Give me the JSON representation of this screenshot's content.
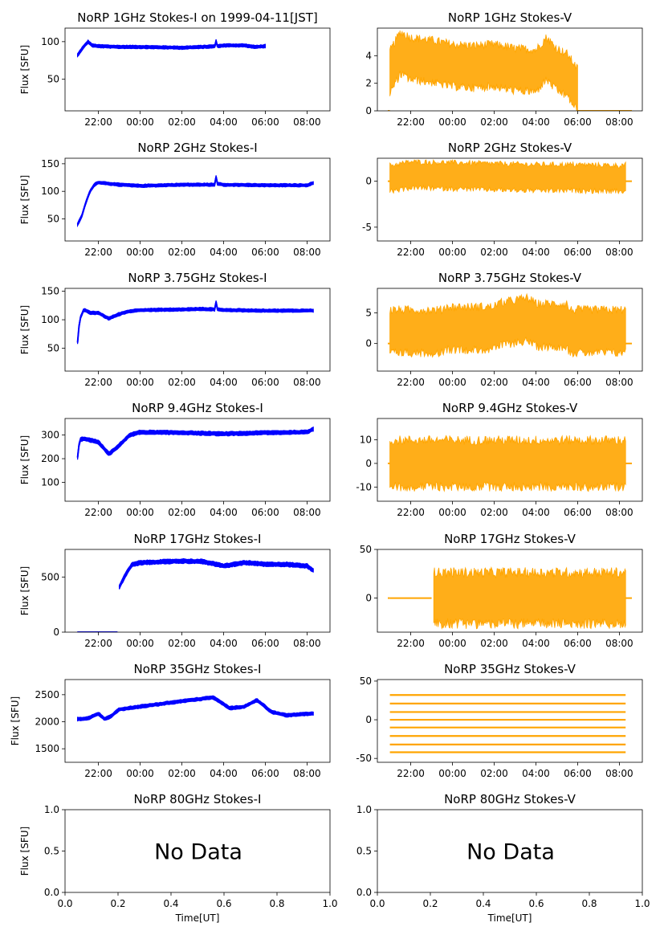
{
  "figure": {
    "title_prefix": "",
    "xlabel": "Time[UT]",
    "ylabel_I": "Flux [SFU]",
    "no_data_text": "No Data",
    "time_ticks": [
      "22:00",
      "00:00",
      "02:00",
      "04:00",
      "06:00",
      "08:00"
    ],
    "empty_ticks": [
      "0.0",
      "0.2",
      "0.4",
      "0.6",
      "0.8",
      "1.0"
    ],
    "empty_yticks": [
      "0.0",
      "0.5",
      "1.0"
    ]
  },
  "colors": {
    "stokes_I": "#0000ff",
    "stokes_V": "#ffa500"
  },
  "chart_data": [
    {
      "type": "line",
      "title": "NoRP 1GHz Stokes-I on 1999-04-11[JST]",
      "ylabel": "Flux [SFU]",
      "xlabel": "",
      "xlim_hours": [
        20.4,
        33.1
      ],
      "ylim": [
        8,
        118
      ],
      "yticks": [
        50,
        100
      ],
      "series": [
        {
          "kind": "I",
          "x_hours": [
            21.0,
            21.2,
            21.5,
            21.7,
            22.0,
            23.0,
            24.0,
            26.0,
            27.0,
            27.6,
            27.65,
            27.7,
            28.0,
            29.0,
            29.5,
            30.0
          ],
          "y": [
            82,
            90,
            100,
            95,
            94,
            93,
            93,
            92,
            93,
            94,
            103,
            94,
            95,
            95,
            93,
            94
          ],
          "band": 3
        }
      ]
    },
    {
      "type": "scatter",
      "title": "NoRP 1GHz Stokes-V",
      "ylabel": "",
      "xlabel": "",
      "xlim_hours": [
        20.4,
        33.1
      ],
      "ylim": [
        0,
        6
      ],
      "yticks": [
        0,
        2,
        4
      ],
      "series": [
        {
          "kind": "V",
          "x_hours": [
            21.0,
            21.5,
            22.0,
            23.0,
            24.0,
            25.0,
            26.0,
            27.0,
            28.0,
            28.5,
            29.0,
            29.5,
            30.0
          ],
          "y": [
            2.8,
            4.2,
            3.8,
            3.6,
            3.3,
            3.2,
            3.3,
            3.0,
            2.9,
            3.8,
            3.0,
            2.6,
            1.5
          ],
          "band": 1.4
        }
      ]
    },
    {
      "type": "line",
      "title": "NoRP 2GHz Stokes-I",
      "ylabel": "Flux [SFU]",
      "xlabel": "",
      "xlim_hours": [
        20.4,
        33.1
      ],
      "ylim": [
        10,
        160
      ],
      "yticks": [
        50,
        100,
        150
      ],
      "series": [
        {
          "kind": "I",
          "x_hours": [
            21.0,
            21.2,
            21.4,
            21.6,
            21.8,
            22.0,
            22.5,
            23.0,
            24.0,
            26.0,
            27.6,
            27.65,
            27.7,
            28.0,
            30.0,
            32.0,
            32.3
          ],
          "y": [
            40,
            55,
            80,
            100,
            112,
            116,
            114,
            112,
            110,
            112,
            112,
            130,
            114,
            112,
            111,
            111,
            115
          ],
          "band": 4
        }
      ]
    },
    {
      "type": "scatter",
      "title": "NoRP 2GHz Stokes-V",
      "ylabel": "",
      "xlabel": "",
      "xlim_hours": [
        20.4,
        33.1
      ],
      "ylim": [
        -6.5,
        2.5
      ],
      "yticks": [
        -5,
        0
      ],
      "series": [
        {
          "kind": "V",
          "x_hours": [
            21.0,
            22.0,
            24.0,
            26.0,
            28.0,
            30.0,
            32.0,
            32.3
          ],
          "y": [
            0.3,
            0.7,
            0.6,
            0.5,
            0.4,
            0.4,
            0.3,
            0.4
          ],
          "band": 1.3
        }
      ]
    },
    {
      "type": "line",
      "title": "NoRP 3.75GHz Stokes-I",
      "ylabel": "Flux [SFU]",
      "xlabel": "",
      "xlim_hours": [
        20.4,
        33.1
      ],
      "ylim": [
        10,
        155
      ],
      "yticks": [
        50,
        100,
        150
      ],
      "series": [
        {
          "kind": "I",
          "x_hours": [
            21.0,
            21.1,
            21.3,
            21.6,
            22.0,
            22.5,
            23.0,
            23.5,
            24.0,
            26.0,
            27.0,
            27.6,
            27.65,
            27.7,
            28.0,
            30.0,
            32.3
          ],
          "y": [
            60,
            100,
            118,
            112,
            112,
            102,
            110,
            115,
            117,
            118,
            119,
            118,
            135,
            118,
            117,
            116,
            116
          ],
          "band": 4
        }
      ]
    },
    {
      "type": "scatter",
      "title": "NoRP 3.75GHz Stokes-V",
      "ylabel": "",
      "xlabel": "",
      "xlim_hours": [
        20.4,
        33.1
      ],
      "ylim": [
        -4.5,
        9
      ],
      "yticks": [
        0,
        5
      ],
      "series": [
        {
          "kind": "V",
          "x_hours": [
            21.0,
            23.5,
            23.6,
            26.0,
            26.1,
            27.6,
            28.0,
            29.5,
            29.6,
            32.3
          ],
          "y": [
            2.0,
            2.0,
            2.5,
            2.5,
            3.0,
            4.0,
            3.0,
            3.0,
            2.0,
            2.0
          ],
          "band": 3.2
        }
      ]
    },
    {
      "type": "line",
      "title": "NoRP 9.4GHz Stokes-I",
      "ylabel": "Flux [SFU]",
      "xlabel": "",
      "xlim_hours": [
        20.4,
        33.1
      ],
      "ylim": [
        20,
        370
      ],
      "yticks": [
        100,
        200,
        300
      ],
      "series": [
        {
          "kind": "I",
          "x_hours": [
            21.0,
            21.1,
            21.3,
            22.0,
            22.5,
            22.8,
            23.5,
            24.0,
            26.0,
            28.0,
            30.0,
            32.0,
            32.3
          ],
          "y": [
            205,
            280,
            285,
            270,
            220,
            240,
            300,
            312,
            310,
            305,
            310,
            312,
            325
          ],
          "band": 12
        }
      ]
    },
    {
      "type": "scatter",
      "title": "NoRP 9.4GHz Stokes-V",
      "ylabel": "",
      "xlabel": "",
      "xlim_hours": [
        20.4,
        33.1
      ],
      "ylim": [
        -16,
        19
      ],
      "yticks": [
        -10,
        0,
        10
      ],
      "series": [
        {
          "kind": "V",
          "x_hours": [
            21.0,
            24.0,
            28.0,
            32.3
          ],
          "y": [
            0,
            0,
            0,
            0
          ],
          "band": 9
        }
      ]
    },
    {
      "type": "line",
      "title": "NoRP 17GHz Stokes-I",
      "ylabel": "Flux [SFU]",
      "xlabel": "",
      "xlim_hours": [
        20.4,
        33.1
      ],
      "ylim": [
        0,
        750
      ],
      "yticks": [
        0,
        500
      ],
      "series": [
        {
          "kind": "I",
          "x_hours": [
            23.0,
            23.3,
            23.6,
            24.0,
            26.0,
            27.0,
            28.0,
            29.0,
            30.0,
            31.0,
            32.0,
            32.3
          ],
          "y": [
            410,
            520,
            610,
            630,
            645,
            640,
            600,
            630,
            615,
            615,
            600,
            560
          ],
          "band": 28
        },
        {
          "kind": "I",
          "x_hours": [
            21.0,
            22.9
          ],
          "y": [
            0,
            0
          ],
          "band": 1
        }
      ]
    },
    {
      "type": "scatter",
      "title": "NoRP 17GHz Stokes-V",
      "ylabel": "",
      "xlabel": "",
      "xlim_hours": [
        20.4,
        33.1
      ],
      "ylim": [
        -35,
        50
      ],
      "yticks": [
        0,
        50
      ],
      "series": [
        {
          "kind": "V",
          "x_hours": [
            23.1,
            26.0,
            30.0,
            32.3
          ],
          "y": [
            0,
            0,
            0,
            0
          ],
          "band": 24
        },
        {
          "kind": "V",
          "x_hours": [
            21.0,
            23.0
          ],
          "y": [
            0,
            0
          ],
          "band": 0.5
        }
      ]
    },
    {
      "type": "line",
      "title": "NoRP 35GHz Stokes-I",
      "ylabel": "Flux [SFU]",
      "xlabel": "",
      "xlim_hours": [
        20.4,
        33.1
      ],
      "ylim": [
        1250,
        2780
      ],
      "yticks": [
        1500,
        2000,
        2500
      ],
      "series": [
        {
          "kind": "I",
          "x_hours": [
            21.0,
            21.5,
            22.0,
            22.3,
            22.6,
            23.0,
            24.0,
            26.0,
            27.5,
            28.3,
            29.0,
            29.6,
            30.3,
            31.0,
            32.3
          ],
          "y": [
            2050,
            2060,
            2150,
            2050,
            2100,
            2230,
            2280,
            2380,
            2450,
            2250,
            2280,
            2400,
            2180,
            2120,
            2150
          ],
          "band": 45
        }
      ]
    },
    {
      "type": "scatter",
      "title": "NoRP 35GHz Stokes-V",
      "ylabel": "",
      "xlabel": "",
      "xlim_hours": [
        20.4,
        33.1
      ],
      "ylim": [
        -55,
        52
      ],
      "yticks": [
        -50,
        0,
        50
      ],
      "series": [
        {
          "kind": "V",
          "levels": [
            -42,
            -32,
            -21,
            -10,
            0,
            10,
            21,
            32
          ],
          "x_hours": [
            21.0,
            32.3
          ]
        }
      ]
    },
    {
      "type": "line",
      "title": "NoRP 80GHz Stokes-I",
      "ylabel": "Flux [SFU]",
      "xlabel": "Time[UT]",
      "xlim": [
        0,
        1
      ],
      "ylim": [
        0,
        1
      ],
      "no_data": true,
      "series": []
    },
    {
      "type": "scatter",
      "title": "NoRP 80GHz Stokes-V",
      "ylabel": "",
      "xlabel": "Time[UT]",
      "xlim": [
        0,
        1
      ],
      "ylim": [
        0,
        1
      ],
      "no_data": true,
      "series": []
    }
  ]
}
